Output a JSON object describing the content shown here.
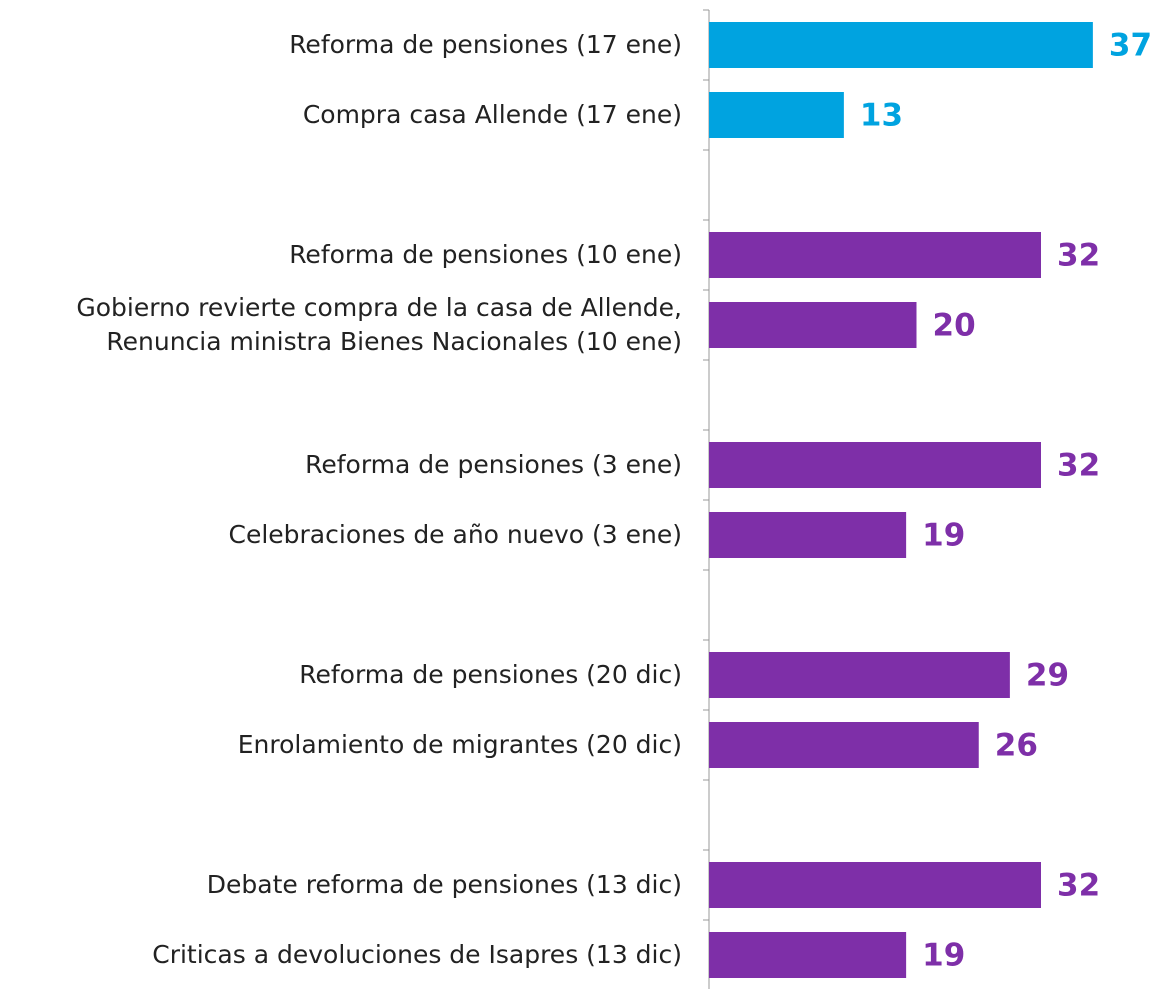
{
  "chart_data": {
    "type": "barh",
    "categories": [
      "Reforma de pensiones (17 ene)",
      "Compra casa Allende (17 ene)",
      null,
      "Reforma de pensiones (10 ene)",
      "Gobierno revierte compra de la casa de Allende,\nRenuncia ministra Bienes Nacionales (10 ene)",
      null,
      "Reforma de pensiones (3 ene)",
      "Celebraciones de año nuevo (3 ene)",
      null,
      "Reforma de pensiones (20 dic)",
      "Enrolamiento de migrantes (20 dic)",
      null,
      "Debate reforma de pensiones (13 dic)",
      "Criticas a devoluciones de Isapres (13 dic)"
    ],
    "values": [
      37,
      13,
      null,
      32,
      20,
      null,
      32,
      19,
      null,
      29,
      26,
      null,
      32,
      19
    ],
    "colors": [
      "#00a3e0",
      "#00a3e0",
      null,
      "#7e2fa8",
      "#7e2fa8",
      null,
      "#7e2fa8",
      "#7e2fa8",
      null,
      "#7e2fa8",
      "#7e2fa8",
      null,
      "#7e2fa8",
      "#7e2fa8"
    ],
    "xlim": [
      0,
      40
    ]
  }
}
